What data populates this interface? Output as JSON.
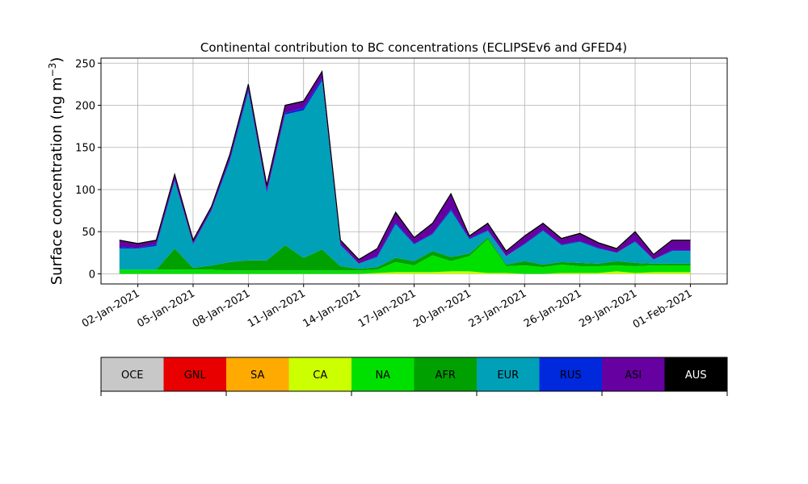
{
  "chart_data": {
    "type": "area",
    "stacked": true,
    "title": "Continental contribution to BC concentrations (ECLIPSEv6 and GFED4)",
    "xlabel": "",
    "ylabel": "Surface concentration (ng m",
    "ylabel_sup": "−3",
    "ylabel_close": ")",
    "ylim": [
      -12,
      256
    ],
    "yticks": [
      0,
      50,
      100,
      150,
      200,
      250
    ],
    "ytick_labels": [
      "0",
      "50",
      "100",
      "150",
      "200",
      "250"
    ],
    "xlim": [
      "2020-12-31T00:00",
      "2021-02-03T00:00"
    ],
    "xticks": [
      "2021-01-02",
      "2021-01-05",
      "2021-01-08",
      "2021-01-11",
      "2021-01-14",
      "2021-01-17",
      "2021-01-20",
      "2021-01-23",
      "2021-01-26",
      "2021-01-29",
      "2021-02-01"
    ],
    "xtick_labels": [
      "02-Jan-2021",
      "05-Jan-2021",
      "08-Jan-2021",
      "11-Jan-2021",
      "14-Jan-2021",
      "17-Jan-2021",
      "20-Jan-2021",
      "23-Jan-2021",
      "26-Jan-2021",
      "29-Jan-2021",
      "01-Feb-2021"
    ],
    "grid": true,
    "legend_position": "bottom colorbar",
    "x": [
      "2021-01-01",
      "2021-01-02",
      "2021-01-03",
      "2021-01-04",
      "2021-01-05",
      "2021-01-06",
      "2021-01-07",
      "2021-01-08",
      "2021-01-09",
      "2021-01-10",
      "2021-01-11",
      "2021-01-12",
      "2021-01-13",
      "2021-01-14",
      "2021-01-15",
      "2021-01-16",
      "2021-01-17",
      "2021-01-18",
      "2021-01-19",
      "2021-01-20",
      "2021-01-21",
      "2021-01-22",
      "2021-01-23",
      "2021-01-24",
      "2021-01-25",
      "2021-01-26",
      "2021-01-27",
      "2021-01-28",
      "2021-01-29",
      "2021-01-30",
      "2021-01-31",
      "2021-02-01"
    ],
    "total": [
      40,
      36,
      40,
      118,
      40,
      80,
      142,
      225,
      105,
      200,
      205,
      240,
      40,
      17,
      30,
      73,
      43,
      60,
      95,
      45,
      60,
      27,
      45,
      60,
      42,
      48,
      37,
      30,
      50,
      23,
      40,
      40
    ],
    "series": [
      {
        "name": "OCE",
        "color": "#c8c8c8",
        "values": [
          0,
          0,
          0,
          0,
          0,
          0,
          0,
          0,
          0,
          0,
          0,
          0,
          0,
          0,
          0,
          0,
          0,
          0,
          0,
          0,
          0,
          0,
          0,
          0,
          0,
          0,
          0,
          0,
          0,
          0,
          0,
          0
        ]
      },
      {
        "name": "GNL",
        "color": "#e80000",
        "values": [
          0,
          0,
          0,
          0,
          0,
          0,
          0,
          0,
          0,
          0,
          0,
          0,
          0,
          0,
          0,
          0,
          0,
          0,
          0,
          0,
          0,
          0,
          0,
          0,
          0,
          0,
          0,
          0,
          0,
          0,
          0,
          0
        ]
      },
      {
        "name": "SA",
        "color": "#ffaa00",
        "values": [
          0,
          0,
          0,
          0,
          0,
          0,
          0,
          0,
          0,
          0,
          0,
          0,
          0,
          0,
          0,
          0,
          0,
          0,
          0,
          0,
          0,
          0,
          0,
          0,
          0,
          0,
          0,
          0,
          0,
          0,
          0,
          0
        ]
      },
      {
        "name": "CA",
        "color": "#ccff00",
        "values": [
          0,
          0,
          0,
          0,
          0,
          0,
          0,
          0,
          0,
          0,
          0,
          0,
          0,
          0,
          1,
          2,
          2,
          2,
          3,
          3,
          1,
          1,
          0,
          0,
          1,
          1,
          1,
          3,
          1,
          2,
          2,
          2
        ]
      },
      {
        "name": "NA",
        "color": "#00e000",
        "values": [
          5,
          5,
          5,
          5,
          5,
          5,
          4,
          4,
          4,
          4,
          4,
          4,
          4,
          4,
          4,
          12,
          8,
          20,
          12,
          18,
          40,
          8,
          10,
          8,
          10,
          8,
          8,
          7,
          8,
          8,
          8,
          8
        ]
      },
      {
        "name": "AFR",
        "color": "#00a000",
        "values": [
          0,
          0,
          0,
          25,
          2,
          5,
          10,
          12,
          12,
          30,
          15,
          25,
          5,
          2,
          3,
          5,
          5,
          5,
          5,
          3,
          2,
          2,
          5,
          3,
          3,
          4,
          3,
          5,
          4,
          2,
          2,
          2
        ]
      },
      {
        "name": "EUR",
        "color": "#00a0b8",
        "values": [
          25,
          25,
          28,
          80,
          28,
          65,
          120,
          200,
          80,
          155,
          175,
          200,
          25,
          6,
          12,
          40,
          20,
          20,
          55,
          17,
          8,
          10,
          20,
          40,
          20,
          25,
          18,
          10,
          25,
          5,
          15,
          15
        ]
      },
      {
        "name": "RUS",
        "color": "#0028dc",
        "values": [
          2,
          1,
          2,
          2,
          1,
          1,
          2,
          3,
          2,
          2,
          3,
          3,
          1,
          0,
          1,
          2,
          1,
          1,
          2,
          1,
          1,
          0,
          1,
          1,
          1,
          1,
          1,
          0,
          1,
          0,
          1,
          1
        ]
      },
      {
        "name": "ASI",
        "color": "#6600a0",
        "values": [
          7,
          4,
          4,
          5,
          3,
          3,
          5,
          5,
          6,
          8,
          7,
          7,
          4,
          4,
          9,
          10,
          6,
          11,
          17,
          2,
          7,
          5,
          8,
          7,
          6,
          8,
          5,
          4,
          10,
          5,
          11,
          11
        ]
      },
      {
        "name": "AUS",
        "color": "#000000",
        "values": [
          1,
          1,
          1,
          1,
          1,
          1,
          1,
          1,
          1,
          1,
          1,
          1,
          1,
          1,
          1,
          1,
          1,
          1,
          1,
          1,
          1,
          1,
          1,
          1,
          1,
          1,
          1,
          1,
          1,
          1,
          1,
          1
        ]
      }
    ]
  }
}
